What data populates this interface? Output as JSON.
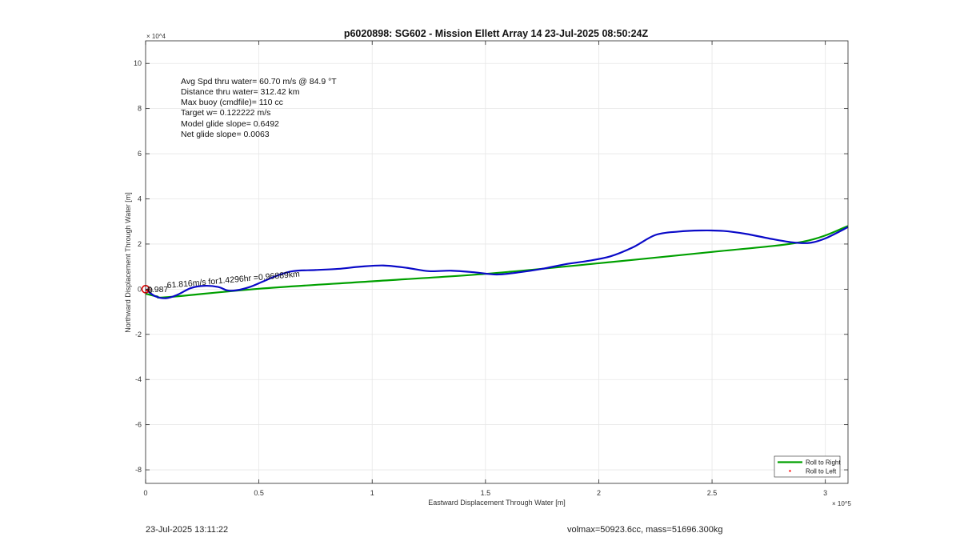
{
  "chart_data": {
    "type": "line",
    "title": "p6020898: SG602 - Mission Ellett Array 14 23-Jul-2025 08:50:24Z",
    "xlabel": "Eastward Displacement Through Water [m]",
    "ylabel": "Northward Displacement Through Water [m]",
    "x_exponent": "× 10^5",
    "y_exponent": "× 10^4",
    "xlim": [
      0,
      310000
    ],
    "ylim": [
      -86000,
      110000
    ],
    "grid": true,
    "x_ticks": [
      {
        "value": 0,
        "label": "0"
      },
      {
        "value": 50000,
        "label": "0.5"
      },
      {
        "value": 100000,
        "label": "1"
      },
      {
        "value": 150000,
        "label": "1.5"
      },
      {
        "value": 200000,
        "label": "2"
      },
      {
        "value": 250000,
        "label": "2.5"
      },
      {
        "value": 300000,
        "label": "3"
      }
    ],
    "y_ticks": [
      {
        "value": -80000,
        "label": "-8"
      },
      {
        "value": -60000,
        "label": "-6"
      },
      {
        "value": -40000,
        "label": "-4"
      },
      {
        "value": -20000,
        "label": "-2"
      },
      {
        "value": 0,
        "label": "0"
      },
      {
        "value": 20000,
        "label": "2"
      },
      {
        "value": 40000,
        "label": "4"
      },
      {
        "value": 60000,
        "label": "6"
      },
      {
        "value": 80000,
        "label": "8"
      },
      {
        "value": 100000,
        "label": "10"
      }
    ],
    "series": [
      {
        "name": "Roll to Right",
        "color": "#00a000",
        "x": [
          0,
          5000,
          10000,
          50000,
          100000,
          150000,
          200000,
          250000,
          290000,
          310000
        ],
        "y": [
          -2000,
          -3200,
          -3500,
          200,
          3500,
          6800,
          11500,
          16500,
          21000,
          28000
        ]
      },
      {
        "name": "Roll to Left",
        "color": "#ff0000",
        "marker": ".",
        "x": [
          500,
          1500
        ],
        "y": [
          -500,
          -300
        ]
      },
      {
        "name": "",
        "color": "#0a0ac8",
        "x": [
          0,
          4000,
          9000,
          14000,
          20000,
          26000,
          32000,
          36000,
          40000,
          46000,
          52000,
          58000,
          65000,
          75000,
          85000,
          95000,
          105000,
          115000,
          125000,
          135000,
          145000,
          155000,
          165000,
          175000,
          185000,
          195000,
          205000,
          215000,
          225000,
          235000,
          245000,
          255000,
          265000,
          275000,
          285000,
          293000,
          300000,
          310000
        ],
        "y": [
          0,
          -3000,
          -4000,
          -2500,
          500,
          1500,
          1000,
          -500,
          -500,
          1000,
          3500,
          6000,
          8000,
          8500,
          9000,
          10000,
          10500,
          9500,
          8000,
          8200,
          7500,
          6500,
          7500,
          9000,
          11000,
          12500,
          14500,
          18500,
          24000,
          25500,
          26000,
          25800,
          24500,
          22500,
          20800,
          20500,
          22500,
          27500
        ]
      }
    ],
    "annotations": [
      "Avg Spd thru water= 60.70 m/s @  84.9 °T",
      "Distance thru water= 312.42 km",
      "Max buoy (cmdfile)= 110 cc",
      "Target w= 0.122222 m/s",
      "Model glide slope= 0.6492",
      "Net glide slope= 0.0063"
    ],
    "start_labels": {
      "label_a": "61.816m/s for1.4296hr =0.96889km",
      "label_b": "0.987",
      "label_c": "0"
    },
    "legend_position": "bottom-right"
  },
  "footer": {
    "timestamp": "23-Jul-2025 13:11:22",
    "volume_mass": "volmax=50923.6cc, mass=51696.300kg"
  }
}
